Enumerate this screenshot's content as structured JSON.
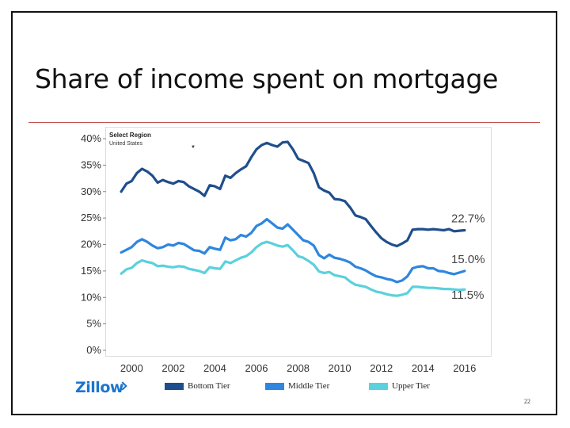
{
  "slide": {
    "title": "Share of income spent on mortgage",
    "page_number": "22"
  },
  "selector": {
    "label": "Select Region",
    "value": "United States"
  },
  "brand": {
    "name": "Zillow",
    "color": "#1a75cf"
  },
  "colors": {
    "title_rule": "#c0504d"
  },
  "chart_data": {
    "type": "line",
    "title": "",
    "xlabel": "",
    "ylabel": "",
    "x_ticks": [
      2000,
      2002,
      2004,
      2006,
      2008,
      2010,
      2012,
      2014,
      2016
    ],
    "y_ticks": [
      0,
      5,
      10,
      15,
      20,
      25,
      30,
      35,
      40
    ],
    "y_tick_suffix": "%",
    "xlim": [
      1999,
      2016.5
    ],
    "ylim": [
      0,
      40
    ],
    "grid": false,
    "legend_position": "bottom",
    "x": [
      1999.5,
      1999.75,
      2000,
      2000.25,
      2000.5,
      2000.75,
      2001,
      2001.25,
      2001.5,
      2001.75,
      2002,
      2002.25,
      2002.5,
      2002.75,
      2003,
      2003.25,
      2003.5,
      2003.75,
      2004,
      2004.25,
      2004.5,
      2004.75,
      2005,
      2005.25,
      2005.5,
      2005.75,
      2006,
      2006.25,
      2006.5,
      2006.75,
      2007,
      2007.25,
      2007.5,
      2007.75,
      2008,
      2008.25,
      2008.5,
      2008.75,
      2009,
      2009.25,
      2009.5,
      2009.75,
      2010,
      2010.25,
      2010.5,
      2010.75,
      2011,
      2011.25,
      2011.5,
      2011.75,
      2012,
      2012.25,
      2012.5,
      2012.75,
      2013,
      2013.25,
      2013.5,
      2013.75,
      2014,
      2014.25,
      2014.5,
      2014.75,
      2015,
      2015.25,
      2015.5,
      2015.75,
      2016
    ],
    "series": [
      {
        "name": "Bottom Tier",
        "color": "#1f4e8c",
        "end_label": "22.7%",
        "values": [
          30.0,
          31.5,
          32.0,
          33.5,
          34.3,
          33.8,
          33.0,
          31.7,
          32.2,
          31.8,
          31.5,
          32.0,
          31.8,
          31.0,
          30.5,
          30.0,
          29.2,
          31.2,
          31.0,
          30.5,
          33.0,
          32.6,
          33.5,
          34.2,
          34.8,
          36.5,
          38.0,
          38.8,
          39.2,
          38.8,
          38.5,
          39.3,
          39.4,
          38.0,
          36.2,
          35.8,
          35.4,
          33.5,
          30.8,
          30.2,
          29.8,
          28.6,
          28.5,
          28.2,
          27.0,
          25.5,
          25.2,
          24.8,
          23.5,
          22.3,
          21.2,
          20.5,
          20.0,
          19.7,
          20.2,
          20.8,
          22.8,
          22.9,
          22.9,
          22.8,
          22.9,
          22.8,
          22.7,
          22.9,
          22.5,
          22.6,
          22.7
        ]
      },
      {
        "name": "Middle Tier",
        "color": "#2e86de",
        "end_label": "15.0%",
        "values": [
          18.5,
          19.0,
          19.5,
          20.5,
          21.0,
          20.5,
          19.8,
          19.3,
          19.5,
          20.0,
          19.8,
          20.3,
          20.1,
          19.5,
          18.9,
          18.8,
          18.3,
          19.5,
          19.2,
          19.0,
          21.3,
          20.8,
          21.0,
          21.8,
          21.5,
          22.2,
          23.5,
          24.0,
          24.8,
          24.0,
          23.2,
          23.0,
          23.8,
          22.8,
          21.8,
          20.8,
          20.5,
          19.8,
          18.0,
          17.4,
          18.1,
          17.5,
          17.3,
          17.0,
          16.6,
          15.8,
          15.5,
          15.1,
          14.5,
          14.0,
          13.8,
          13.5,
          13.3,
          12.9,
          13.2,
          14.0,
          15.5,
          15.8,
          15.9,
          15.5,
          15.5,
          15.0,
          14.9,
          14.6,
          14.4,
          14.7,
          15.0
        ]
      },
      {
        "name": "Upper Tier",
        "color": "#5ad1dd",
        "end_label": "11.5%",
        "values": [
          14.5,
          15.3,
          15.6,
          16.5,
          17.0,
          16.7,
          16.5,
          15.9,
          16.0,
          15.8,
          15.7,
          15.9,
          15.8,
          15.4,
          15.2,
          15.0,
          14.6,
          15.7,
          15.5,
          15.4,
          16.8,
          16.5,
          17.0,
          17.5,
          17.8,
          18.5,
          19.5,
          20.2,
          20.5,
          20.2,
          19.8,
          19.6,
          19.9,
          18.9,
          17.8,
          17.5,
          16.9,
          16.2,
          14.9,
          14.6,
          14.8,
          14.2,
          14.0,
          13.8,
          13.0,
          12.4,
          12.2,
          12.0,
          11.5,
          11.1,
          10.9,
          10.6,
          10.4,
          10.3,
          10.5,
          10.8,
          12.0,
          12.0,
          11.9,
          11.8,
          11.8,
          11.7,
          11.6,
          11.6,
          11.5,
          11.4,
          11.5
        ]
      }
    ]
  }
}
